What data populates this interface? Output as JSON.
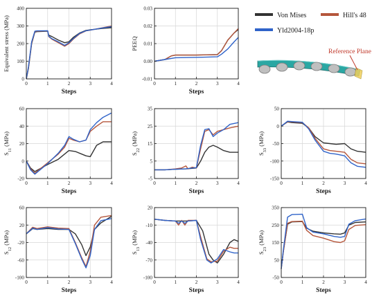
{
  "colors": {
    "von_mises": "#333333",
    "hills48": "#b5563b",
    "yld2004": "#2f63c9",
    "grid": "#d6d6d6",
    "annotation": "#c0392b"
  },
  "legend": {
    "von_mises": "Von Mises",
    "hills48": "Hill's 48",
    "yld2004": "Yld2004-18p"
  },
  "annotation": {
    "reference_plane": "Reference Plane"
  },
  "chart_data": [
    {
      "id": "equiv",
      "type": "line",
      "ylabel": "Equivalent stress (MPa)",
      "ylabel_sub": "",
      "ylabel_tail": "",
      "xlabel": "Steps",
      "xlim": [
        0,
        4
      ],
      "ylim": [
        0,
        400
      ],
      "yticks": [
        0,
        100,
        200,
        300,
        400
      ],
      "ytick_labels": [
        "0",
        "100",
        "200",
        "300",
        "400"
      ],
      "xticks": [
        0,
        1,
        2,
        3,
        4
      ],
      "xtick_labels": [
        "0",
        "1",
        "2",
        "3",
        "4"
      ],
      "grid": true,
      "series": [
        {
          "name": "Von Mises",
          "x": [
            0,
            0.1,
            0.25,
            0.4,
            0.5,
            1.0,
            1.05,
            1.2,
            1.5,
            1.8,
            2.0,
            2.2,
            2.5,
            2.8,
            3.0,
            3.5,
            4.0
          ],
          "y": [
            0,
            60,
            200,
            265,
            268,
            270,
            248,
            240,
            220,
            205,
            210,
            235,
            260,
            275,
            278,
            285,
            290
          ]
        },
        {
          "name": "Hill's 48",
          "x": [
            0,
            0.1,
            0.25,
            0.4,
            0.5,
            1.0,
            1.05,
            1.2,
            1.5,
            1.8,
            2.0,
            2.2,
            2.5,
            2.8,
            3.0,
            3.5,
            4.0
          ],
          "y": [
            0,
            65,
            205,
            268,
            270,
            272,
            240,
            225,
            205,
            185,
            200,
            225,
            255,
            272,
            276,
            288,
            300
          ]
        },
        {
          "name": "Yld2004-18p",
          "x": [
            0,
            0.1,
            0.25,
            0.4,
            0.5,
            1.0,
            1.05,
            1.2,
            1.5,
            1.8,
            2.0,
            2.2,
            2.5,
            2.8,
            3.0,
            3.5,
            4.0
          ],
          "y": [
            0,
            70,
            210,
            270,
            272,
            273,
            242,
            228,
            210,
            190,
            205,
            228,
            258,
            273,
            277,
            287,
            296
          ]
        }
      ]
    },
    {
      "id": "peeq",
      "type": "line",
      "ylabel": "PEEQ",
      "ylabel_sub": "",
      "ylabel_tail": "",
      "xlabel": "Steps",
      "xlim": [
        0,
        4
      ],
      "ylim": [
        -0.01,
        0.03
      ],
      "yticks": [
        -0.01,
        0,
        0.01,
        0.02,
        0.03
      ],
      "ytick_labels": [
        "-0.01",
        "0.00",
        "0.01",
        "0.02",
        "0.03"
      ],
      "xticks": [
        0,
        1,
        2,
        3,
        4
      ],
      "xtick_labels": [
        "0",
        "1",
        "2",
        "3",
        "4"
      ],
      "grid": true,
      "series": [
        {
          "name": "Von Mises",
          "x": [
            0,
            0.5,
            0.8,
            1.0,
            2.0,
            3.0,
            3.2,
            3.5,
            3.8,
            4.0
          ],
          "y": [
            0,
            0.001,
            0.003,
            0.0035,
            0.0035,
            0.0038,
            0.006,
            0.012,
            0.016,
            0.018
          ]
        },
        {
          "name": "Hill's 48",
          "x": [
            0,
            0.5,
            0.8,
            1.0,
            2.0,
            3.0,
            3.2,
            3.5,
            3.8,
            4.0
          ],
          "y": [
            0,
            0.001,
            0.003,
            0.0035,
            0.0035,
            0.0037,
            0.006,
            0.012,
            0.016,
            0.0185
          ]
        },
        {
          "name": "Yld2004-18p",
          "x": [
            0,
            0.5,
            1.0,
            2.0,
            3.0,
            3.2,
            3.5,
            3.8,
            4.0
          ],
          "y": [
            0,
            0.001,
            0.002,
            0.0022,
            0.0025,
            0.004,
            0.007,
            0.011,
            0.0135
          ]
        }
      ]
    },
    {
      "id": "s11",
      "type": "line",
      "ylabel": "S",
      "ylabel_sub": "11",
      "ylabel_tail": " (MPa)",
      "xlabel": "Steps",
      "xlim": [
        0,
        4
      ],
      "ylim": [
        -20,
        60
      ],
      "yticks": [
        -20,
        0,
        20,
        40,
        60
      ],
      "ytick_labels": [
        "-20",
        "0",
        "20",
        "40",
        "60"
      ],
      "xticks": [
        0,
        1,
        2,
        3,
        4
      ],
      "xtick_labels": [
        "0",
        "1",
        "2",
        "3",
        "4"
      ],
      "grid": true,
      "series": [
        {
          "name": "Von Mises",
          "x": [
            0,
            0.2,
            0.4,
            0.7,
            1.0,
            1.5,
            2.0,
            2.3,
            2.6,
            2.8,
            3.0,
            3.3,
            3.6,
            4.0
          ],
          "y": [
            0,
            -8,
            -12,
            -8,
            -4,
            2,
            12,
            11,
            8,
            6,
            5,
            18,
            22,
            22
          ]
        },
        {
          "name": "Hill's 48",
          "x": [
            0,
            0.2,
            0.4,
            0.7,
            1.0,
            1.5,
            1.8,
            2.0,
            2.2,
            2.5,
            2.8,
            3.0,
            3.3,
            3.6,
            4.0
          ],
          "y": [
            0,
            -9,
            -14,
            -8,
            -2,
            8,
            16,
            26,
            24,
            22,
            24,
            34,
            40,
            45,
            45
          ]
        },
        {
          "name": "Yld2004-18p",
          "x": [
            0,
            0.2,
            0.4,
            0.7,
            1.0,
            1.5,
            1.8,
            2.0,
            2.2,
            2.5,
            2.8,
            3.0,
            3.3,
            3.6,
            4.0
          ],
          "y": [
            0,
            -10,
            -15,
            -9,
            -3,
            9,
            18,
            28,
            25,
            22,
            24,
            36,
            44,
            50,
            55
          ]
        }
      ]
    },
    {
      "id": "s22",
      "type": "line",
      "ylabel": "S",
      "ylabel_sub": "22",
      "ylabel_tail": " (MPa)",
      "xlabel": "Steps",
      "xlim": [
        0,
        4
      ],
      "ylim": [
        -5,
        35
      ],
      "yticks": [
        -5,
        5,
        15,
        25,
        35
      ],
      "ytick_labels": [
        "-5",
        "5",
        "15",
        "25",
        "35"
      ],
      "xticks": [
        0,
        1,
        2,
        3,
        4
      ],
      "xtick_labels": [
        "0",
        "1",
        "2",
        "3",
        "4"
      ],
      "grid": true,
      "series": [
        {
          "name": "Von Mises",
          "x": [
            0,
            0.5,
            1.0,
            1.5,
            2.0,
            2.2,
            2.4,
            2.6,
            2.8,
            3.0,
            3.3,
            3.6,
            4.0
          ],
          "y": [
            0,
            0,
            0.3,
            0.5,
            1.0,
            5,
            10,
            13,
            14,
            13,
            11,
            10,
            10
          ]
        },
        {
          "name": "Hill's 48",
          "x": [
            0,
            0.5,
            1.0,
            1.3,
            1.5,
            1.6,
            1.8,
            2.0,
            2.2,
            2.4,
            2.6,
            2.8,
            3.0,
            3.3,
            3.6,
            4.0
          ],
          "y": [
            0,
            0,
            0.5,
            1.0,
            2.2,
            0.5,
            1.5,
            1.0,
            12,
            22,
            23,
            20,
            22,
            23,
            24,
            25
          ]
        },
        {
          "name": "Yld2004-18p",
          "x": [
            0,
            0.5,
            1.0,
            1.5,
            1.8,
            2.0,
            2.2,
            2.4,
            2.6,
            2.8,
            3.0,
            3.3,
            3.6,
            4.0
          ],
          "y": [
            0,
            0,
            0.3,
            0.6,
            1.0,
            1.2,
            14,
            23,
            23.5,
            19,
            21,
            23,
            26,
            27
          ]
        }
      ]
    },
    {
      "id": "s33",
      "type": "line",
      "ylabel": "S",
      "ylabel_sub": "33",
      "ylabel_tail": " (MPa)",
      "xlabel": "Steps",
      "xlim": [
        0,
        4
      ],
      "ylim": [
        -150,
        50
      ],
      "yticks": [
        -150,
        -100,
        -50,
        0,
        50
      ],
      "ytick_labels": [
        "-150",
        "-100",
        "-50",
        "0",
        "50"
      ],
      "xticks": [
        0,
        1,
        2,
        3,
        4
      ],
      "xtick_labels": [
        "0",
        "1",
        "2",
        "3",
        "4"
      ],
      "grid": true,
      "series": [
        {
          "name": "Von Mises",
          "x": [
            0,
            0.3,
            0.5,
            1.0,
            1.3,
            1.6,
            2.0,
            2.3,
            2.6,
            3.0,
            3.3,
            3.6,
            4.0
          ],
          "y": [
            0,
            12,
            10,
            8,
            -5,
            -30,
            -48,
            -50,
            -52,
            -50,
            -65,
            -72,
            -75
          ]
        },
        {
          "name": "Hill's 48",
          "x": [
            0,
            0.3,
            0.5,
            1.0,
            1.3,
            1.6,
            2.0,
            2.3,
            2.6,
            3.0,
            3.3,
            3.6,
            4.0
          ],
          "y": [
            0,
            13,
            12,
            10,
            -5,
            -35,
            -65,
            -70,
            -72,
            -75,
            -95,
            -105,
            -108
          ]
        },
        {
          "name": "Yld2004-18p",
          "x": [
            0,
            0.3,
            0.5,
            1.0,
            1.3,
            1.6,
            2.0,
            2.3,
            2.6,
            3.0,
            3.3,
            3.6,
            4.0
          ],
          "y": [
            0,
            14,
            13,
            11,
            -8,
            -40,
            -72,
            -78,
            -80,
            -85,
            -105,
            -115,
            -118
          ]
        }
      ]
    },
    {
      "id": "s12",
      "type": "line",
      "ylabel": "S",
      "ylabel_sub": "12",
      "ylabel_tail": " (MPa)",
      "xlabel": "Steps",
      "xlim": [
        0,
        4
      ],
      "ylim": [
        -100,
        60
      ],
      "yticks": [
        -100,
        -60,
        -20,
        20,
        60
      ],
      "ytick_labels": [
        "-100",
        "-60",
        "-20",
        "20",
        "60"
      ],
      "xticks": [
        0,
        1,
        2,
        3,
        4
      ],
      "xtick_labels": [
        "0",
        "1",
        "2",
        "3",
        "4"
      ],
      "grid": true,
      "series": [
        {
          "name": "Von Mises",
          "x": [
            0,
            0.3,
            0.5,
            1.0,
            1.5,
            2.0,
            2.3,
            2.6,
            2.8,
            3.0,
            3.2,
            3.5,
            4.0
          ],
          "y": [
            0,
            12,
            10,
            12,
            10,
            10,
            0,
            -25,
            -50,
            -30,
            10,
            25,
            40
          ]
        },
        {
          "name": "Hill's 48",
          "x": [
            0,
            0.3,
            0.5,
            1.0,
            1.5,
            2.0,
            2.3,
            2.6,
            2.8,
            3.0,
            3.2,
            3.5,
            4.0
          ],
          "y": [
            0,
            15,
            12,
            16,
            13,
            12,
            -20,
            -55,
            -75,
            -40,
            20,
            38,
            42
          ]
        },
        {
          "name": "Yld2004-18p",
          "x": [
            0,
            0.3,
            0.5,
            1.0,
            1.5,
            2.0,
            2.3,
            2.6,
            2.8,
            3.0,
            3.2,
            3.5,
            4.0
          ],
          "y": [
            0,
            13,
            10,
            14,
            11,
            10,
            -22,
            -58,
            -78,
            -50,
            10,
            30,
            35
          ]
        }
      ]
    },
    {
      "id": "s13",
      "type": "line",
      "ylabel": "S",
      "ylabel_sub": "13",
      "ylabel_tail": " (MPa)",
      "xlabel": "Steps",
      "xlim": [
        0,
        4
      ],
      "ylim": [
        -100,
        20
      ],
      "yticks": [
        -100,
        -70,
        -40,
        -10,
        20
      ],
      "ytick_labels": [
        "-100",
        "-70",
        "-40",
        "-10",
        "20"
      ],
      "xticks": [
        0,
        1,
        2,
        3,
        4
      ],
      "xtick_labels": [
        "0",
        "1",
        "2",
        "3",
        "4"
      ],
      "grid": true,
      "series": [
        {
          "name": "Von Mises",
          "x": [
            0,
            0.5,
            1.0,
            1.5,
            2.0,
            2.3,
            2.6,
            2.8,
            3.0,
            3.3,
            3.6,
            3.8,
            4.0
          ],
          "y": [
            0,
            -2,
            -3,
            -3,
            -2,
            -20,
            -60,
            -70,
            -75,
            -60,
            -40,
            -35,
            -38
          ]
        },
        {
          "name": "Hill's 48",
          "x": [
            0,
            0.5,
            1.0,
            1.15,
            1.3,
            1.45,
            1.6,
            2.0,
            2.2,
            2.5,
            2.7,
            3.0,
            3.3,
            3.6,
            3.8,
            4.0
          ],
          "y": [
            0,
            -2,
            -3,
            -10,
            -2,
            -10,
            -2,
            -2,
            -30,
            -68,
            -73,
            -72,
            -55,
            -48,
            -50,
            -50
          ]
        },
        {
          "name": "Yld2004-18p",
          "x": [
            0,
            0.5,
            1.0,
            1.15,
            1.3,
            1.45,
            1.6,
            2.0,
            2.2,
            2.5,
            2.7,
            3.0,
            3.3,
            3.6,
            3.8,
            4.0
          ],
          "y": [
            0,
            -2,
            -3,
            -7,
            -3,
            -7,
            -3,
            -2,
            -35,
            -70,
            -75,
            -68,
            -52,
            -56,
            -58,
            -58
          ]
        }
      ]
    },
    {
      "id": "s23",
      "type": "line",
      "ylabel": "S",
      "ylabel_sub": "23",
      "ylabel_tail": " (MPa)",
      "xlabel": "Steps",
      "xlim": [
        0,
        4
      ],
      "ylim": [
        -50,
        350
      ],
      "yticks": [
        -50,
        50,
        150,
        250,
        350
      ],
      "ytick_labels": [
        "-50",
        "50",
        "150",
        "250",
        "350"
      ],
      "xticks": [
        0,
        1,
        2,
        3,
        4
      ],
      "xtick_labels": [
        "0",
        "1",
        "2",
        "3",
        "4"
      ],
      "grid": true,
      "series": [
        {
          "name": "Von Mises",
          "x": [
            0,
            0.1,
            0.3,
            0.5,
            1.0,
            1.2,
            1.5,
            2.0,
            2.5,
            2.8,
            3.0,
            3.2,
            3.5,
            4.0
          ],
          "y": [
            0,
            100,
            255,
            268,
            270,
            232,
            215,
            205,
            200,
            198,
            205,
            250,
            265,
            268
          ]
        },
        {
          "name": "Hill's 48",
          "x": [
            0,
            0.1,
            0.3,
            0.5,
            1.0,
            1.2,
            1.5,
            2.0,
            2.5,
            2.8,
            3.0,
            3.2,
            3.5,
            4.0
          ],
          "y": [
            0,
            100,
            260,
            270,
            272,
            220,
            190,
            175,
            155,
            150,
            160,
            225,
            248,
            252
          ]
        },
        {
          "name": "Yld2004-18p",
          "x": [
            0,
            0.1,
            0.3,
            0.5,
            1.0,
            1.2,
            1.5,
            2.0,
            2.5,
            2.8,
            3.0,
            3.2,
            3.5,
            4.0
          ],
          "y": [
            0,
            110,
            295,
            310,
            312,
            235,
            210,
            200,
            185,
            180,
            185,
            255,
            275,
            285
          ]
        }
      ]
    }
  ]
}
